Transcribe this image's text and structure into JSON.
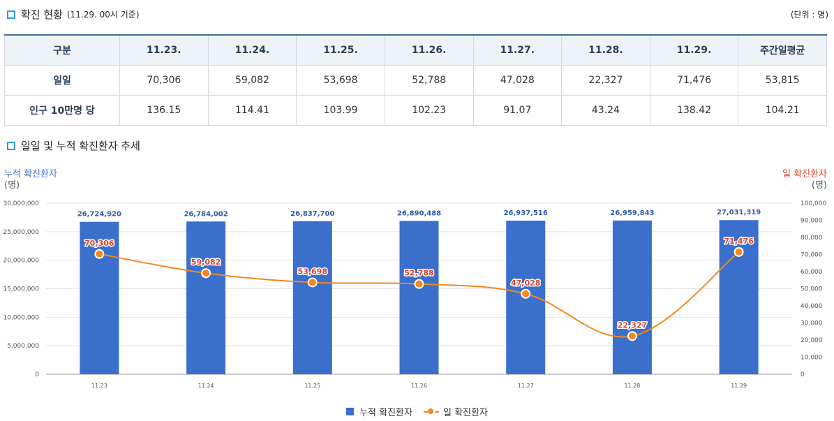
{
  "section1": {
    "title": "확진 현황",
    "subtitle": "(11.29. 00시 기준)",
    "unit": "(단위 : 명)"
  },
  "table": {
    "headers": [
      "구분",
      "11.23.",
      "11.24.",
      "11.25.",
      "11.26.",
      "11.27.",
      "11.28.",
      "11.29.",
      "주간일평균"
    ],
    "rows": [
      {
        "label": "일일",
        "values": [
          "70,306",
          "59,082",
          "53,698",
          "52,788",
          "47,028",
          "22,327",
          "71,476",
          "53,815"
        ]
      },
      {
        "label": "인구 10만명 당",
        "values": [
          "136.15",
          "114.41",
          "103.99",
          "102.23",
          "91.07",
          "43.24",
          "138.42",
          "104.21"
        ]
      }
    ]
  },
  "section2": {
    "title": "일일 및 누적 확진환자 추세"
  },
  "axis_labels": {
    "left_title": "누적 확진환자",
    "left_unit": "(명)",
    "right_title": "일 확진환자",
    "right_unit": "(명)"
  },
  "legend": {
    "cumulative": "누적 확진환자",
    "daily": "일 확진환자"
  },
  "colors": {
    "bar": "#3a6fcb",
    "line": "#f4881c",
    "left_axis_title": "#3a6fcb",
    "right_axis_title": "#d9452b"
  },
  "chart_data": {
    "type": "bar",
    "categories": [
      "11.23",
      "11.24",
      "11.25",
      "11.26",
      "11.27",
      "11.28",
      "11.29"
    ],
    "series": [
      {
        "name": "누적 확진환자",
        "type": "bar",
        "axis": "left",
        "values": [
          26724920,
          26784002,
          26837700,
          26890488,
          26937516,
          26959843,
          27031319
        ],
        "labels": [
          "26,724,920",
          "26,784,002",
          "26,837,700",
          "26,890,488",
          "26,937,516",
          "26,959,843",
          "27,031,319"
        ]
      },
      {
        "name": "일 확진환자",
        "type": "line",
        "axis": "right",
        "values": [
          70306,
          59082,
          53698,
          52788,
          47028,
          22327,
          71476
        ],
        "labels": [
          "70,306",
          "59,082",
          "53,698",
          "52,788",
          "47,028",
          "22,327",
          "71,476"
        ]
      }
    ],
    "y_left": {
      "min": 0,
      "max": 30000000,
      "ticks": [
        "0",
        "5,000,000",
        "10,000,000",
        "15,000,000",
        "20,000,000",
        "25,000,000",
        "30,000,000"
      ],
      "tick_values": [
        0,
        5000000,
        10000000,
        15000000,
        20000000,
        25000000,
        30000000
      ]
    },
    "y_right": {
      "min": 0,
      "max": 100000,
      "ticks": [
        "0",
        "10,000",
        "20,000",
        "30,000",
        "40,000",
        "50,000",
        "60,000",
        "70,000",
        "80,000",
        "90,000",
        "100,000"
      ],
      "tick_values": [
        0,
        10000,
        20000,
        30000,
        40000,
        50000,
        60000,
        70000,
        80000,
        90000,
        100000
      ]
    },
    "title": "일일 및 누적 확진환자 추세",
    "legend_position": "bottom-center"
  }
}
